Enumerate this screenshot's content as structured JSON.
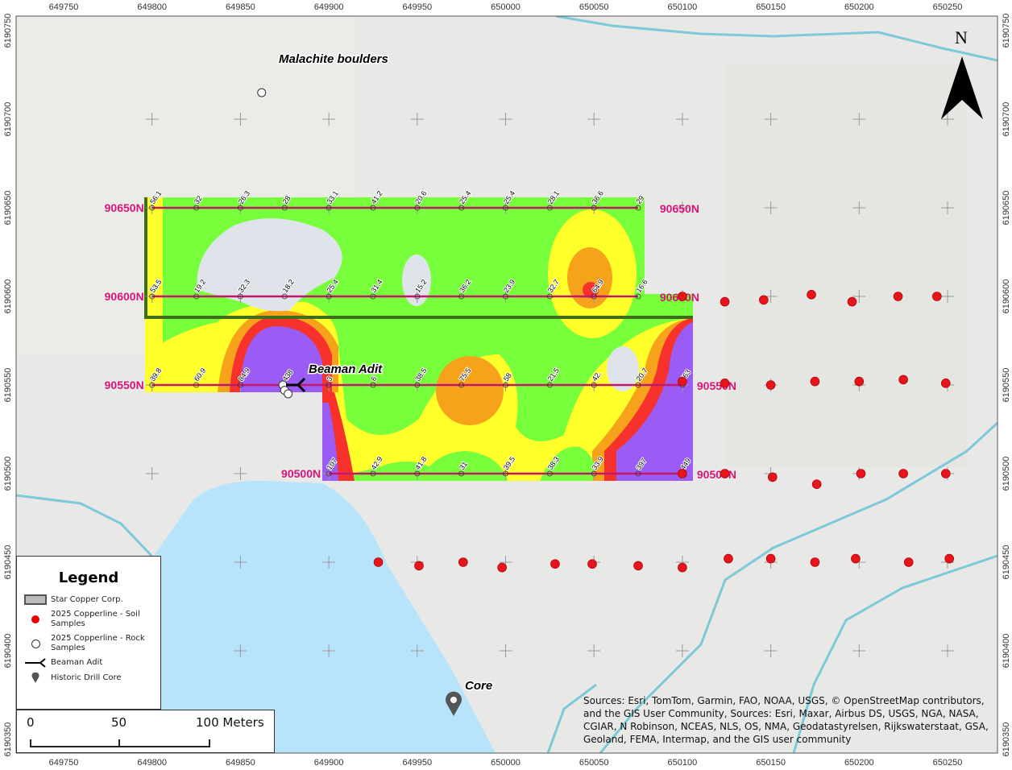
{
  "map": {
    "x_ticks": [
      "649750",
      "649800",
      "649850",
      "649900",
      "649950",
      "650000",
      "650050",
      "650100",
      "650150",
      "650200",
      "650250"
    ],
    "y_ticks": [
      "6190750",
      "6190700",
      "6190650",
      "6190600",
      "6190550",
      "6190500",
      "6190450",
      "6190400",
      "6190350"
    ],
    "north_label": "N",
    "colors": {
      "green": "#76ff3a",
      "yellow": "#ffff2a",
      "orange": "#f7a21b",
      "red": "#f7322c",
      "purple": "#9b5cf6",
      "grey": "#dfe3ea",
      "line": "#c2186b",
      "water": "#b8e4fb",
      "stream": "#7cc9d8"
    },
    "lines": [
      {
        "label": "90650N",
        "northing": 6190650,
        "start_easting": 649800,
        "values": [
          "56.1",
          "32",
          "26.3",
          "28",
          "33.1",
          "41.2",
          "20.6",
          "25.4",
          "25.4",
          "28.1",
          "36.6",
          "29"
        ]
      },
      {
        "label": "90600N",
        "northing": 6190600,
        "start_easting": 649800,
        "values": [
          "53.5",
          "19.2",
          "32.3",
          "18.2",
          "25.4",
          "31.4",
          "15.2",
          "36.2",
          "23.9",
          "32.7",
          "64.9",
          "16.6"
        ]
      },
      {
        "label": "90550N",
        "northing": 6190550,
        "start_easting": 649800,
        "values": [
          "39.8",
          "60.9",
          "84.9",
          "438",
          "3",
          "6",
          "38.5",
          "75.5",
          "58",
          "21.5",
          "42.",
          "20.7",
          "463"
        ]
      },
      {
        "label": "90500N",
        "northing": 6190500,
        "start_easting": 649900,
        "values": [
          "107",
          "42.9",
          "41.8",
          "31",
          "39.5",
          "38.3",
          "33.9",
          "397",
          "449"
        ]
      }
    ],
    "soil_samples": [
      [
        650100,
        6190600
      ],
      [
        650124,
        6190597
      ],
      [
        650146,
        6190598
      ],
      [
        650173,
        6190601
      ],
      [
        650196,
        6190597
      ],
      [
        650222,
        6190600
      ],
      [
        650244,
        6190600
      ],
      [
        650100,
        6190552
      ],
      [
        650124,
        6190551
      ],
      [
        650150,
        6190550
      ],
      [
        650175,
        6190552
      ],
      [
        650200,
        6190552
      ],
      [
        650225,
        6190553
      ],
      [
        650249,
        6190551
      ],
      [
        650100,
        6190500
      ],
      [
        650124,
        6190500
      ],
      [
        650151,
        6190498
      ],
      [
        650176,
        6190494
      ],
      [
        650201,
        6190500
      ],
      [
        650225,
        6190500
      ],
      [
        650249,
        6190500
      ],
      [
        649928,
        6190450
      ],
      [
        649951,
        6190448
      ],
      [
        649976,
        6190450
      ],
      [
        649998,
        6190447
      ],
      [
        650028,
        6190449
      ],
      [
        650049,
        6190449
      ],
      [
        650075,
        6190448
      ],
      [
        650100,
        6190447
      ],
      [
        650126,
        6190452
      ],
      [
        650150,
        6190452
      ],
      [
        650175,
        6190450
      ],
      [
        650198,
        6190452
      ],
      [
        650228,
        6190450
      ],
      [
        650251,
        6190452
      ]
    ],
    "rock_samples": [
      [
        649874,
        6190550
      ],
      [
        649875,
        6190547
      ],
      [
        649877,
        6190545
      ],
      [
        649862,
        6190715
      ]
    ],
    "labels": {
      "malachite": "Malachite boulders",
      "adit": "Beaman Adit",
      "core": "Core"
    }
  },
  "legend": {
    "title": "Legend",
    "items": [
      "Star Copper Corp.",
      "2025 Copperline - Soil Samples",
      "2025 Copperline - Rock Samples",
      "Beaman Adit",
      "Historic Drill Core"
    ]
  },
  "scale": {
    "labels": [
      "0",
      "50",
      "100 Meters"
    ]
  },
  "attribution": "Sources: Esri, TomTom, Garmin, FAO, NOAA, USGS, © OpenStreetMap contributors, and the GIS User Community, Sources: Esri, Maxar, Airbus DS, USGS, NGA, NASA, CGIAR, N Robinson, NCEAS, NLS, OS, NMA, Geodatastyrelsen, Rijkswaterstaat, GSA, Geoland, FEMA, Intermap, and the GIS user community"
}
